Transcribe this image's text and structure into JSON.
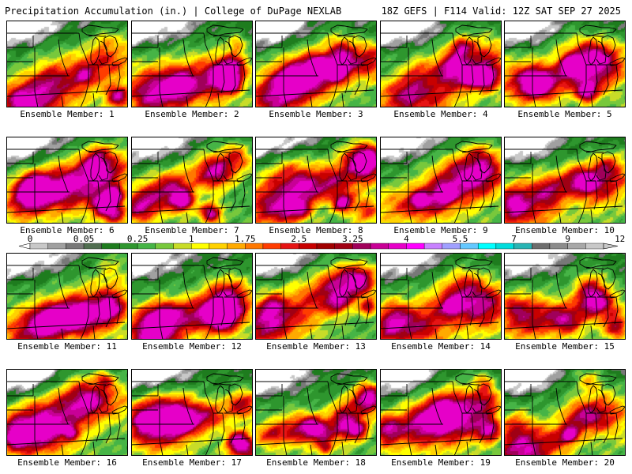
{
  "header": {
    "title_left": "Precipitation Accumulation (in.) | College of DuPage NEXLAB",
    "title_right": "18Z GEFS | F114 Valid: 12Z SAT SEP 27 2025"
  },
  "colors": {
    "bands": [
      "#ffffff",
      "#c8c8c8",
      "#a0a0a0",
      "#787878",
      "#1e7c1e",
      "#2e962e",
      "#46b446",
      "#78c83c",
      "#c8dc28",
      "#ffff00",
      "#ffd200",
      "#ffaa00",
      "#ff7800",
      "#ff3c00",
      "#e61414",
      "#c80000",
      "#a00014",
      "#a0005a",
      "#c80096",
      "#e600c8",
      "#ff00ff",
      "#c882ff",
      "#a0a0ff",
      "#64c8ff",
      "#00ffff",
      "#00dcdc",
      "#28b4b4",
      "#8c8c8c",
      "#a8a8a8",
      "#c8c8c8"
    ],
    "colorbar_segments": [
      "#c8c8c8",
      "#a0a0a0",
      "#787878",
      "#506e50",
      "#1e7c1e",
      "#2e962e",
      "#46b446",
      "#78c83c",
      "#c8dc28",
      "#ffff00",
      "#ffd200",
      "#ffaa00",
      "#ff7800",
      "#ff3c00",
      "#e61414",
      "#c80000",
      "#a00000",
      "#a00014",
      "#a0005a",
      "#c80096",
      "#e600c8",
      "#ff00ff",
      "#c882ff",
      "#a0a0ff",
      "#64c8ff",
      "#00ffff",
      "#00dcdc",
      "#28b4b4",
      "#6e6e6e",
      "#8c8c8c",
      "#a8a8a8",
      "#c8c8c8"
    ]
  },
  "colorbar": {
    "labels": [
      "0",
      "0.05",
      "0.25",
      "1",
      "1.75",
      "2.5",
      "3.25",
      "4",
      "5.5",
      "7",
      "9",
      "12"
    ]
  },
  "panels": [
    {
      "label": "Ensemble Member: 1"
    },
    {
      "label": "Ensemble Member: 2"
    },
    {
      "label": "Ensemble Member: 3"
    },
    {
      "label": "Ensemble Member: 4"
    },
    {
      "label": "Ensemble Member: 5"
    },
    {
      "label": "Ensemble Member: 6"
    },
    {
      "label": "Ensemble Member: 7"
    },
    {
      "label": "Ensemble Member: 8"
    },
    {
      "label": "Ensemble Member: 9"
    },
    {
      "label": "Ensemble Member: 10"
    },
    {
      "label": "Ensemble Member: 11"
    },
    {
      "label": "Ensemble Member: 12"
    },
    {
      "label": "Ensemble Member: 13"
    },
    {
      "label": "Ensemble Member: 14"
    },
    {
      "label": "Ensemble Member: 15"
    },
    {
      "label": "Ensemble Member: 16"
    },
    {
      "label": "Ensemble Member: 17"
    },
    {
      "label": "Ensemble Member: 18"
    },
    {
      "label": "Ensemble Member: 19"
    },
    {
      "label": "Ensemble Member: 20"
    }
  ]
}
